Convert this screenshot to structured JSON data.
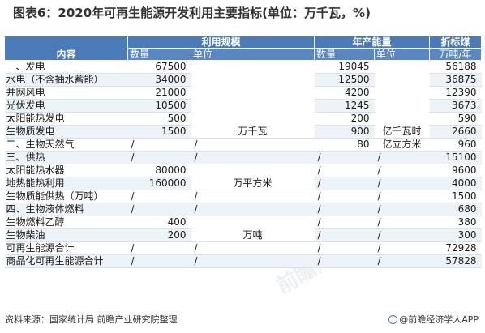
{
  "title": "图表6：2020年可再生能源开发利用主要指标(单位：万千瓦，%)",
  "header": {
    "content": "内容",
    "group_use": "利用规模",
    "group_annual": "年产能量",
    "group_coal": "折标煤",
    "qty1": "数量",
    "unit1": "单位",
    "qty2": "数量",
    "unit2": "单位",
    "coal_unit": "万吨/年"
  },
  "units": {
    "wanqianwa": "万千瓦",
    "wanpingfangmi": "万平方米",
    "wandun": "万吨",
    "yiqianwashi": "亿千瓦时",
    "yilifangmi": "亿立方米",
    "slash": "/"
  },
  "rows": [
    {
      "name": "一、发电",
      "q1": "67500",
      "u1": "",
      "q2": "19045",
      "u2": "",
      "coal": "56188"
    },
    {
      "name": "水电（不含抽水蓄能）",
      "q1": "34000",
      "u1": "",
      "q2": "12500",
      "u2": "",
      "coal": "36875"
    },
    {
      "name": "并网风电",
      "q1": "21000",
      "u1": "",
      "q2": "4200",
      "u2": "",
      "coal": "12390"
    },
    {
      "name": "光伏发电",
      "q1": "10500",
      "u1": "",
      "q2": "1245",
      "u2": "",
      "coal": "3673"
    },
    {
      "name": "太阳能热发电",
      "q1": "500",
      "u1": "",
      "q2": "200",
      "u2": "",
      "coal": "590"
    },
    {
      "name": "生物质发电",
      "q1": "1500",
      "u1": "",
      "q2": "900",
      "u2": "",
      "coal": "2660"
    },
    {
      "name": "二、生物天然气",
      "q1": "/",
      "u1": "/",
      "q2": "80",
      "u2": "",
      "coal": "960"
    },
    {
      "name": "三、供热",
      "q1": "/",
      "u1": "/",
      "q2": "/",
      "u2": "/",
      "coal": "15100"
    },
    {
      "name": "太阳能热水器",
      "q1": "80000",
      "u1": "",
      "q2": "/",
      "u2": "/",
      "coal": "9600"
    },
    {
      "name": "地热能热利用",
      "q1": "160000",
      "u1": "",
      "q2": "/",
      "u2": "/",
      "coal": "4000"
    },
    {
      "name": "生物质能供热（万吨）",
      "q1": "/",
      "u1": "/",
      "q2": "/",
      "u2": "/",
      "coal": "1500"
    },
    {
      "name": "四、生物液体燃料",
      "q1": "/",
      "u1": "/",
      "q2": "/",
      "u2": "/",
      "coal": "680"
    },
    {
      "name": "生物燃料乙醇",
      "q1": "400",
      "u1": "",
      "q2": "/",
      "u2": "/",
      "coal": "380"
    },
    {
      "name": "生物柴油",
      "q1": "200",
      "u1": "",
      "q2": "/",
      "u2": "/",
      "coal": "300"
    },
    {
      "name": "可再生能源合计",
      "q1": "/",
      "u1": "/",
      "q2": "/",
      "u2": "/",
      "coal": "72928"
    },
    {
      "name": "商品化可再生能源合计",
      "q1": "/",
      "u1": "/",
      "q2": "/",
      "u2": "/",
      "coal": "57828"
    }
  ],
  "source": "资料来源：国家统计局 前瞻产业研究院整理",
  "brand": "@前瞻经济学人APP",
  "watermarks": [
    "前瞻产业研究院",
    "前瞻产业研究院"
  ]
}
